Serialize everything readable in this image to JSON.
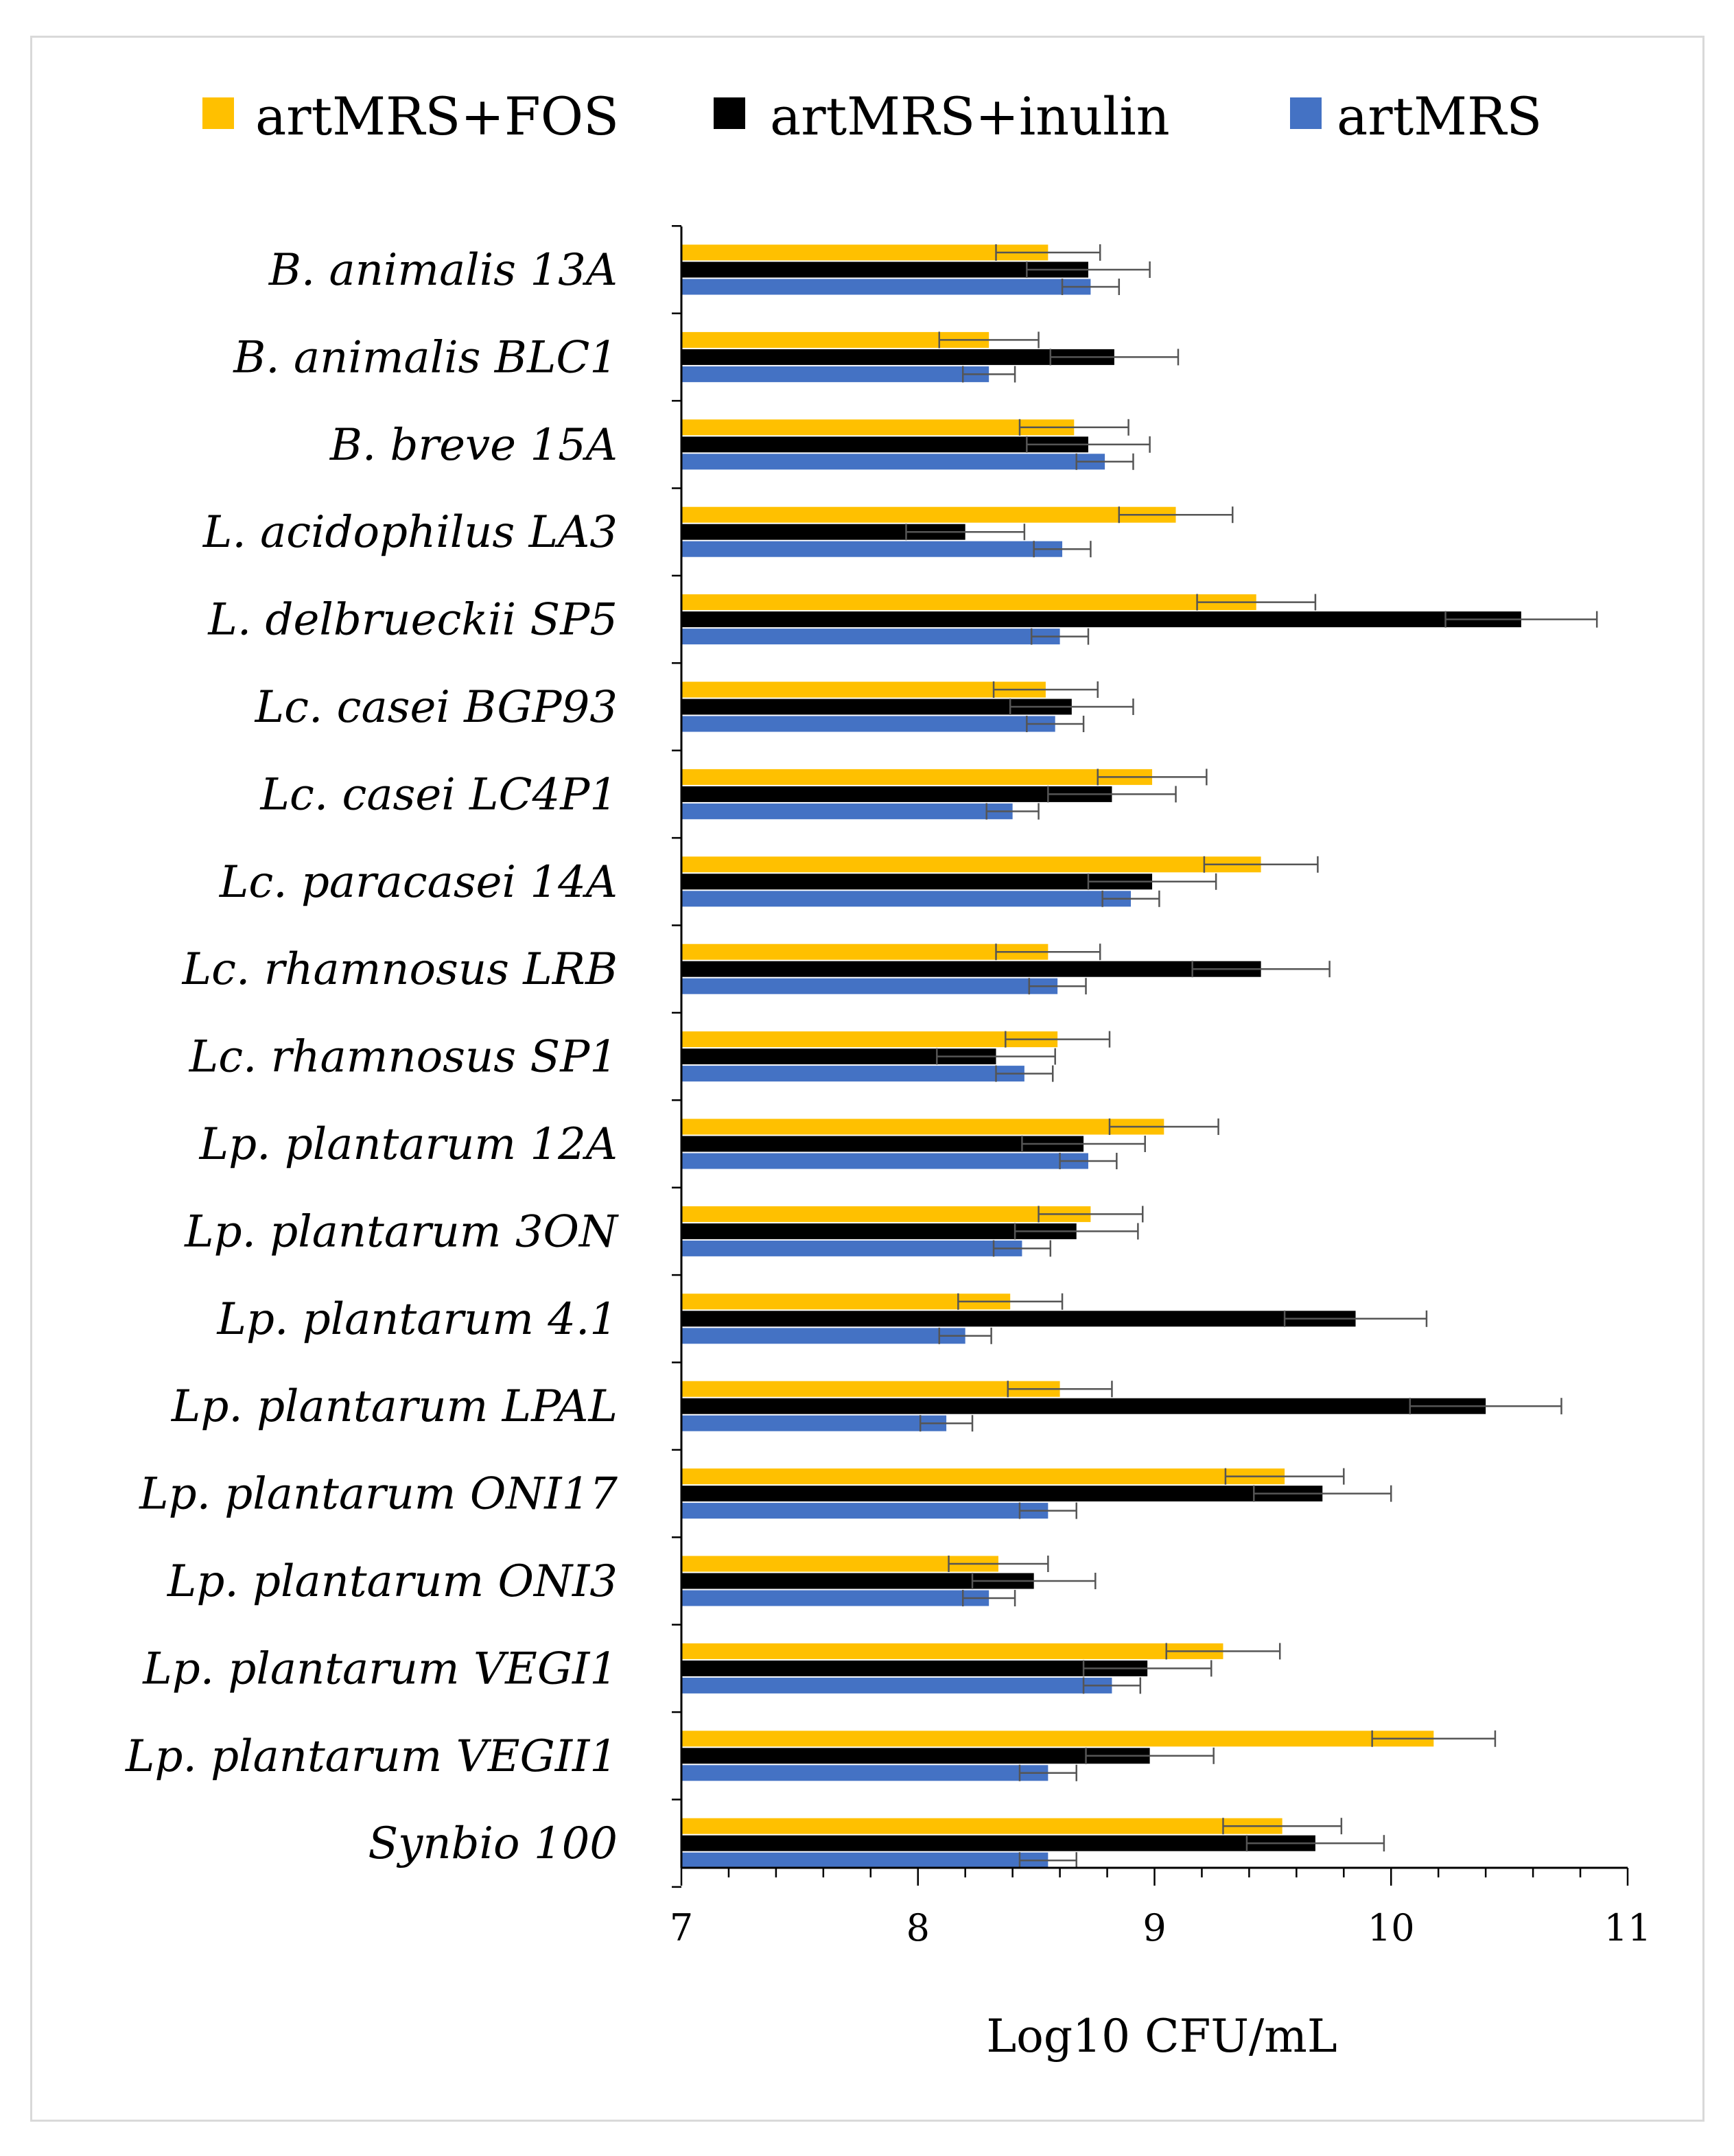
{
  "chart_data": {
    "type": "bar",
    "orientation": "horizontal",
    "title": "",
    "xlabel": "Log10 CFU/mL",
    "ylabel": "",
    "xlim": [
      7,
      11
    ],
    "xticks": [
      "7",
      "8",
      "9",
      "10",
      "11"
    ],
    "grid": false,
    "legend_position": "top",
    "categories": [
      "B. animalis 13A",
      "B. animalis BLC1",
      "B. breve 15A",
      "L. acidophilus LA3",
      "L. delbrueckii SP5",
      "Lc. casei BGP93",
      "Lc. casei LC4P1",
      "Lc. paracasei 14A",
      "Lc. rhamnosus LRB",
      "Lc. rhamnosus SP1",
      "Lp. plantarum 12A",
      "Lp. plantarum 3ON",
      "Lp. plantarum 4.1",
      "Lp. plantarum LPAL",
      "Lp. plantarum ONI17",
      "Lp. plantarum ONI3",
      "Lp. plantarum VEGI1",
      "Lp. plantarum VEGII1",
      "Synbio 100"
    ],
    "series": [
      {
        "name": "artMRS+FOS",
        "color": "#FFC000",
        "values": [
          8.55,
          8.3,
          8.66,
          9.09,
          9.43,
          8.54,
          8.99,
          9.45,
          8.55,
          8.59,
          9.04,
          8.73,
          8.39,
          8.6,
          9.55,
          8.34,
          9.29,
          10.18,
          9.54
        ],
        "errors": [
          0.22,
          0.21,
          0.23,
          0.24,
          0.25,
          0.22,
          0.23,
          0.24,
          0.22,
          0.22,
          0.23,
          0.22,
          0.22,
          0.22,
          0.25,
          0.21,
          0.24,
          0.26,
          0.25
        ]
      },
      {
        "name": "artMRS+inulin",
        "color": "#000000",
        "values": [
          8.72,
          8.83,
          8.72,
          8.2,
          10.55,
          8.65,
          8.82,
          8.99,
          9.45,
          8.33,
          8.7,
          8.67,
          9.85,
          10.4,
          9.71,
          8.49,
          8.97,
          8.98,
          9.68
        ],
        "errors": [
          0.26,
          0.27,
          0.26,
          0.25,
          0.32,
          0.26,
          0.27,
          0.27,
          0.29,
          0.25,
          0.26,
          0.26,
          0.3,
          0.32,
          0.29,
          0.26,
          0.27,
          0.27,
          0.29
        ]
      },
      {
        "name": "artMRS",
        "color": "#4472C4",
        "values": [
          8.73,
          8.3,
          8.79,
          8.61,
          8.6,
          8.58,
          8.4,
          8.9,
          8.59,
          8.45,
          8.72,
          8.44,
          8.2,
          8.12,
          8.55,
          8.3,
          8.82,
          8.55,
          8.55
        ],
        "errors": [
          0.12,
          0.11,
          0.12,
          0.12,
          0.12,
          0.12,
          0.11,
          0.12,
          0.12,
          0.12,
          0.12,
          0.12,
          0.11,
          0.11,
          0.12,
          0.11,
          0.12,
          0.12,
          0.12
        ]
      }
    ]
  }
}
